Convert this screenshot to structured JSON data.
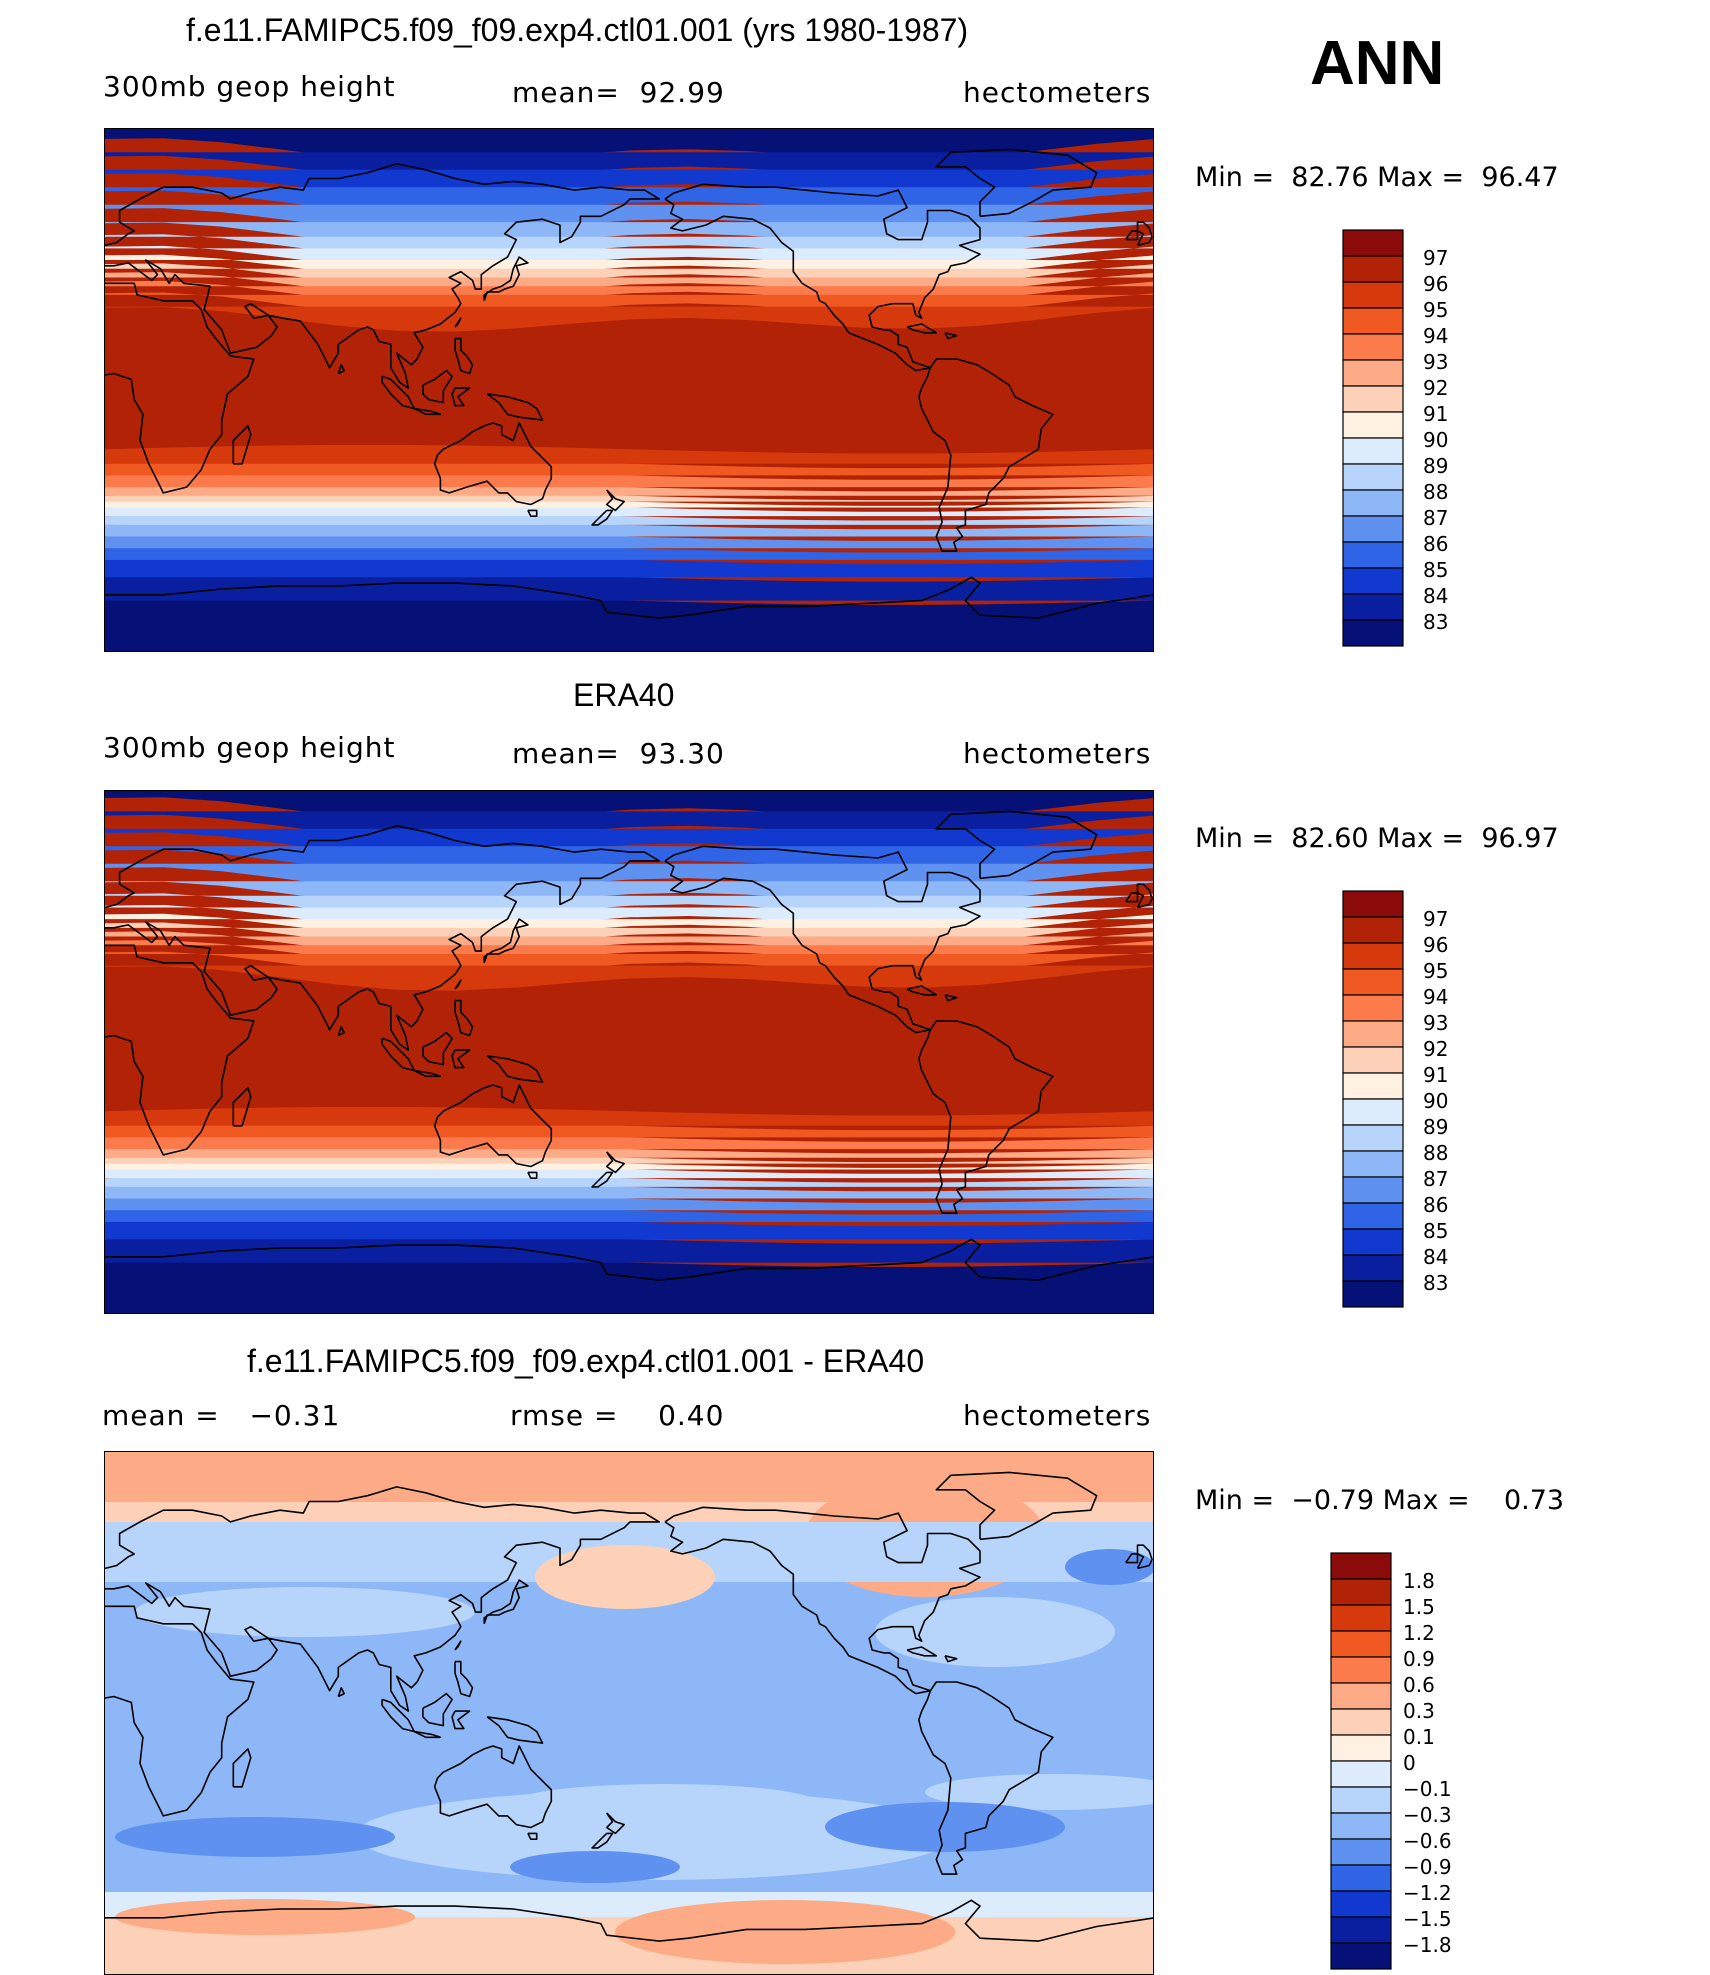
{
  "header": {
    "season": "ANN"
  },
  "panels": [
    {
      "id": "model",
      "title": "f.e11.FAMIPC5.f09_f09.exp4.ctl01.001 (yrs 1980-1987)",
      "field": "300mb geop height",
      "stat": "mean=  92.99",
      "units": "hectometers",
      "minmax": "Min =  82.76 Max =  96.47",
      "colorbar": {
        "labels": [
          "97",
          "96",
          "95",
          "94",
          "93",
          "92",
          "91",
          "90",
          "89",
          "88",
          "87",
          "86",
          "85",
          "84",
          "83"
        ],
        "colors": [
          "#8b0a0a",
          "#b22206",
          "#d6390c",
          "#f05a22",
          "#fc7b4c",
          "#fdab86",
          "#fdd1b8",
          "#fef1e2",
          "#dcecfc",
          "#b7d4fa",
          "#8db7f6",
          "#5f92f0",
          "#2f64e6",
          "#1138cf",
          "#0a1fa0",
          "#061178"
        ]
      }
    },
    {
      "id": "obs",
      "title": "ERA40",
      "field": "300mb geop height",
      "stat": "mean=  93.30",
      "units": "hectometers",
      "minmax": "Min =  82.60 Max =  96.97",
      "colorbar": {
        "labels": [
          "97",
          "96",
          "95",
          "94",
          "93",
          "92",
          "91",
          "90",
          "89",
          "88",
          "87",
          "86",
          "85",
          "84",
          "83"
        ],
        "colors": [
          "#8b0a0a",
          "#b22206",
          "#d6390c",
          "#f05a22",
          "#fc7b4c",
          "#fdab86",
          "#fdd1b8",
          "#fef1e2",
          "#dcecfc",
          "#b7d4fa",
          "#8db7f6",
          "#5f92f0",
          "#2f64e6",
          "#1138cf",
          "#0a1fa0",
          "#061178"
        ]
      }
    },
    {
      "id": "diff",
      "title": "f.e11.FAMIPC5.f09_f09.exp4.ctl01.001 - ERA40",
      "stat_left": "mean =   −0.31",
      "stat": "rmse =    0.40",
      "units": "hectometers",
      "minmax": "Min =  −0.79 Max =    0.73",
      "colorbar": {
        "labels": [
          "1.8",
          "1.5",
          "1.2",
          "0.9",
          "0.6",
          "0.3",
          "0.1",
          "0",
          "−0.1",
          "−0.3",
          "−0.6",
          "−0.9",
          "−1.2",
          "−1.5",
          "−1.8"
        ],
        "colors": [
          "#8b0a0a",
          "#b22206",
          "#d6390c",
          "#f05a22",
          "#fc7b4c",
          "#fdab86",
          "#fdd1b8",
          "#fef1e2",
          "#dcecfc",
          "#b7d4fa",
          "#8db7f6",
          "#5f92f0",
          "#2f64e6",
          "#1138cf",
          "#0a1fa0",
          "#061178"
        ]
      }
    }
  ],
  "palette": {
    "map_bands_abs": [
      "#061178",
      "#0a1fa0",
      "#1138cf",
      "#2f64e6",
      "#5f92f0",
      "#8db7f6",
      "#b7d4fa",
      "#dcecfc",
      "#fef1e2",
      "#fdd1b8",
      "#fdab86",
      "#fc7b4c",
      "#f05a22",
      "#d6390c",
      "#b22206"
    ],
    "diff_base": "#8db7f6",
    "diff_light": "#b7d4fa",
    "diff_pale": "#dcecfc",
    "diff_warm1": "#fdd1b8",
    "diff_warm2": "#fdab86",
    "diff_cold": "#5f92f0"
  }
}
